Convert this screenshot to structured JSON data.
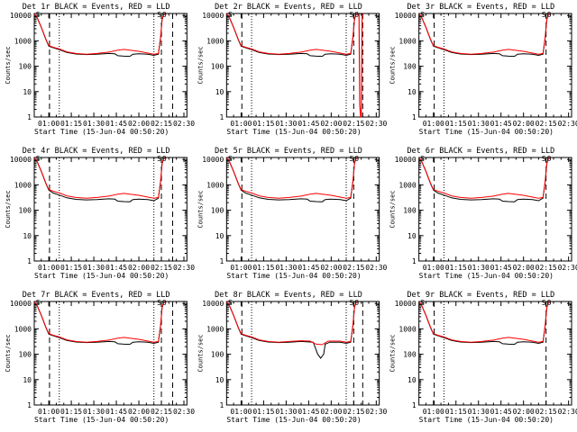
{
  "colors": {
    "events": "#000000",
    "lld": "#ff0000",
    "background": "#ffffff"
  },
  "common": {
    "xlabel": "Start Time (15-Jun-04 00:50:20)",
    "ylabel": "Counts/sec",
    "xtick_labels": [
      "01:00",
      "01:15",
      "01:30",
      "01:45",
      "02:00",
      "02:15",
      "02:30"
    ],
    "xtick_minutes": [
      60,
      75,
      90,
      105,
      120,
      135,
      150
    ],
    "xlim_minutes": [
      50.33,
      152
    ],
    "ytick_labels": [
      "1",
      "10",
      "100",
      "1000",
      "10000"
    ],
    "ytick_values": [
      1,
      10,
      100,
      1000,
      10000
    ],
    "ylim": [
      1,
      12000
    ],
    "yscale": "log",
    "marker_labels": [
      "S",
      "S",
      "O"
    ]
  },
  "chart_data": [
    {
      "type": "line",
      "title": "Det 1r BLACK = Events, RED = LLD",
      "dashed_x": [
        60.5,
        135,
        142.5
      ],
      "dotted_x": [
        67,
        130
      ],
      "variant": "normal"
    },
    {
      "type": "line",
      "title": "Det 2r BLACK = Events, RED = LLD",
      "dashed_x": [
        60.5,
        135,
        141
      ],
      "dotted_x": [
        67,
        130
      ],
      "variant": "spike"
    },
    {
      "type": "line",
      "title": "Det 3r BLACK = Events, RED = LLD",
      "dashed_x": [
        60.5,
        135
      ],
      "dotted_x": [
        67
      ],
      "variant": "normal"
    },
    {
      "type": "line",
      "title": "Det 4r BLACK = Events, RED = LLD",
      "dashed_x": [
        60.5,
        135,
        142.5
      ],
      "dotted_x": [
        67,
        130
      ],
      "variant": "wide"
    },
    {
      "type": "line",
      "title": "Det 5r BLACK = Events, RED = LLD",
      "dashed_x": [
        60.5,
        135
      ],
      "dotted_x": [
        67,
        130
      ],
      "variant": "wide"
    },
    {
      "type": "line",
      "title": "Det 6r BLACK = Events, RED = LLD",
      "dashed_x": [
        60.5,
        135
      ],
      "dotted_x": [
        67
      ],
      "variant": "wide"
    },
    {
      "type": "line",
      "title": "Det 7r BLACK = Events, RED = LLD",
      "dashed_x": [
        60.5,
        135,
        142.5
      ],
      "dotted_x": [
        67,
        130
      ],
      "variant": "normal"
    },
    {
      "type": "line",
      "title": "Det 8r BLACK = Events, RED = LLD",
      "dashed_x": [
        60.5,
        135,
        141
      ],
      "dotted_x": [
        67,
        130
      ],
      "variant": "dip"
    },
    {
      "type": "line",
      "title": "Det 9r BLACK = Events, RED = LLD",
      "dashed_x": [
        60.5,
        135
      ],
      "dotted_x": [
        67
      ],
      "variant": "normal"
    }
  ]
}
